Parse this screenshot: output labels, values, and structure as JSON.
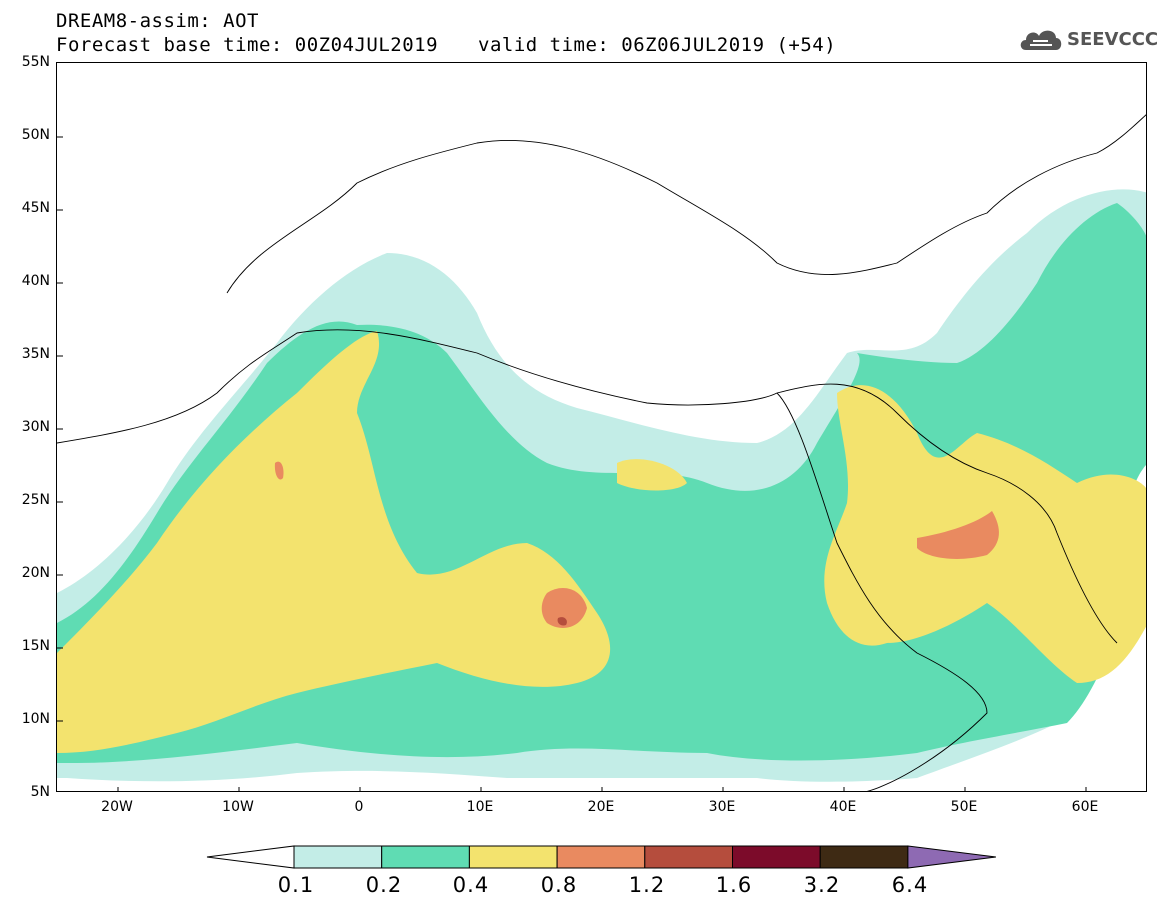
{
  "header": {
    "line1": "DREAM8-assim: AOT",
    "line2": "Forecast base time: 00Z04JUL2019",
    "valid": "valid time: 06Z06JUL2019 (+54)"
  },
  "logo": {
    "text": "SEEVCCC",
    "icon": "cloud-icon"
  },
  "map": {
    "lat_labels": [
      "55N",
      "50N",
      "45N",
      "40N",
      "35N",
      "30N",
      "25N",
      "20N",
      "15N",
      "10N",
      "5N"
    ],
    "lon_labels": [
      "20W",
      "10W",
      "0",
      "10E",
      "20E",
      "30E",
      "40E",
      "50E",
      "60E"
    ],
    "lat_range": [
      5,
      55
    ],
    "lon_range": [
      -25,
      65
    ]
  },
  "colorbar": {
    "levels": [
      "0.1",
      "0.2",
      "0.4",
      "0.8",
      "1.2",
      "1.6",
      "3.2",
      "6.4"
    ],
    "colors": [
      "#ffffff",
      "#c3ede7",
      "#5fdcb3",
      "#f3e36e",
      "#e98a60",
      "#b54d3d",
      "#7c0b2a",
      "#3e2a14",
      "#8e6ab3"
    ]
  }
}
